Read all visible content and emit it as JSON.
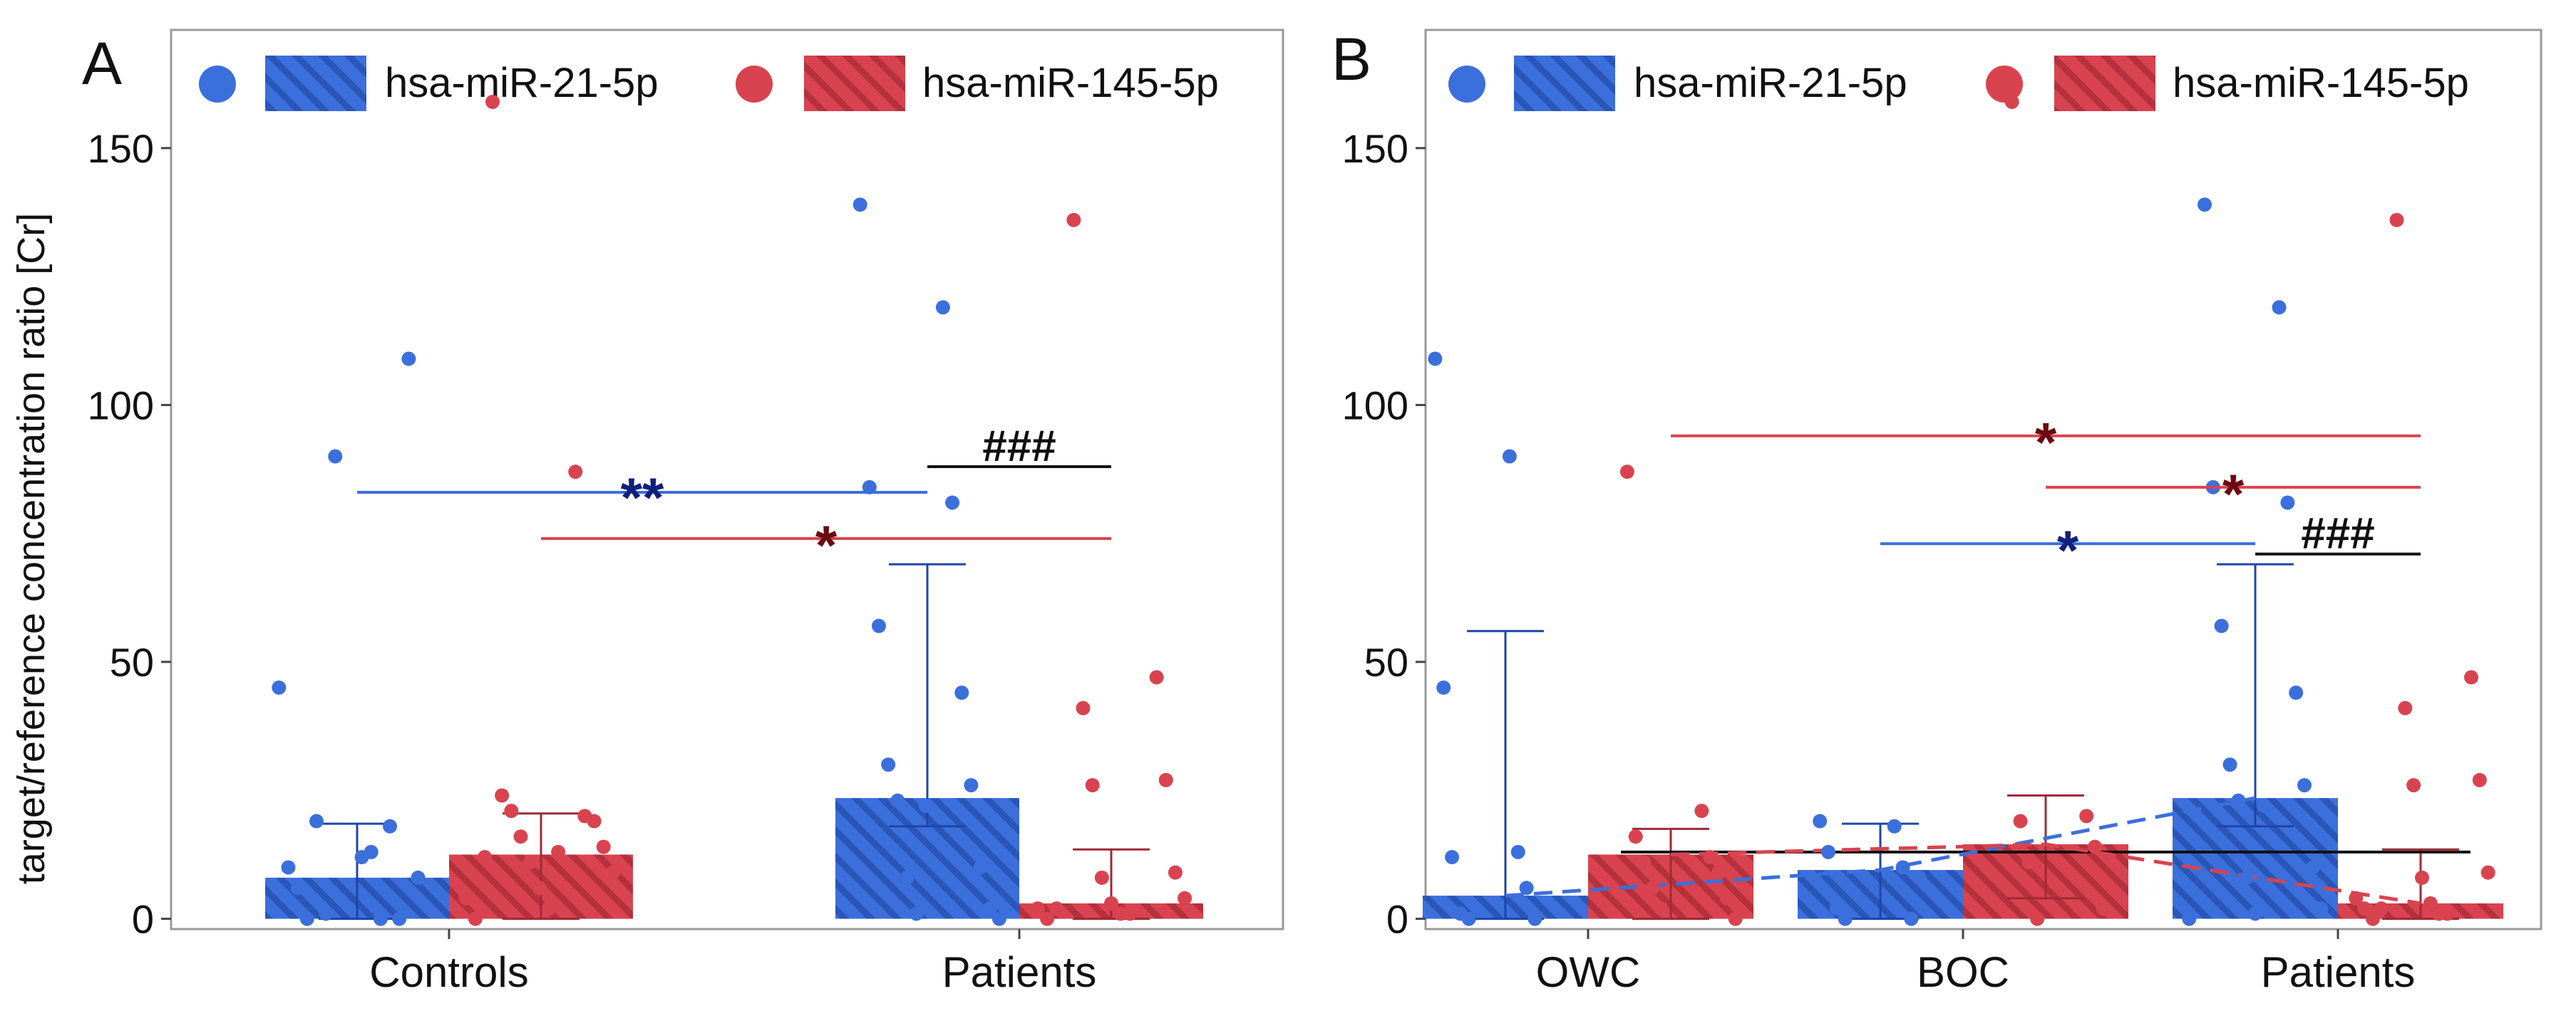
{
  "colors": {
    "blue": "#3b6fdc",
    "blue_dark": "#1f45a8",
    "red": "#d9434f",
    "red_dark": "#a02a35",
    "sig_blue_text": "#10207a",
    "sig_red_text": "#6b0a10",
    "black": "#111111",
    "frame": "#9a9a9a",
    "tick": "#444444"
  },
  "shared": {
    "ylabel": "target/reference concentration ratio [Cr]",
    "y_ticks": [
      0,
      50,
      100,
      150
    ],
    "ylim": [
      -2,
      173
    ]
  },
  "chart_data": [
    {
      "type": "bar",
      "panel": "A",
      "panel_label": "A",
      "categories": [
        "Controls",
        "Patients"
      ],
      "ylabel": "target/reference concentration ratio [Cr]",
      "ylim": [
        -2,
        173
      ],
      "legend": {
        "position": "top",
        "entries": [
          "hsa-miR-21-5p",
          "hsa-miR-145-5p"
        ]
      },
      "series": [
        {
          "name": "hsa-miR-21-5p",
          "color_key": "blue",
          "values": [
            8,
            23.5
          ],
          "error_upper": [
            18.5,
            69
          ],
          "error_lower": [
            0,
            18
          ],
          "points": [
            [
              45,
              12,
              10,
              13,
              6,
              0,
              0,
              18,
              19,
              0,
              1,
              109,
              90,
              8
            ],
            [
              139,
              119,
              84,
              81,
              57,
              44,
              30,
              26,
              23,
              10,
              8,
              2,
              1,
              0,
              22
            ]
          ]
        },
        {
          "name": "hsa-miR-145-5p",
          "color_key": "red",
          "values": [
            12.5,
            3
          ],
          "error_upper": [
            20.5,
            13.5
          ],
          "error_lower": [
            0,
            0
          ],
          "points": [
            [
              159,
              87,
              24,
              20,
              21,
              19,
              16,
              14,
              11,
              9,
              6,
              4,
              2,
              0,
              13,
              12
            ],
            [
              136,
              47,
              41,
              27,
              26,
              9,
              8,
              4,
              3,
              2,
              1,
              0,
              1,
              2
            ]
          ]
        }
      ],
      "significance": [
        {
          "label": "**",
          "y": 83,
          "from": [
            0,
            0
          ],
          "to": [
            1,
            0
          ],
          "color_key": "blue",
          "text_color_key": "sig_blue_text"
        },
        {
          "label": "*",
          "y": 74,
          "from": [
            0,
            1
          ],
          "to": [
            1,
            1
          ],
          "color_key": "red",
          "text_color_key": "sig_red_text"
        },
        {
          "label": "###",
          "y": 88,
          "from": [
            1,
            0
          ],
          "to": [
            1,
            1
          ],
          "color_key": "black",
          "text_color_key": "black"
        }
      ]
    },
    {
      "type": "bar",
      "panel": "B",
      "panel_label": "B",
      "categories": [
        "OWC",
        "BOC",
        "Patients"
      ],
      "ylim": [
        -2,
        173
      ],
      "legend": {
        "position": "top",
        "entries": [
          "hsa-miR-21-5p",
          "hsa-miR-145-5p"
        ]
      },
      "series": [
        {
          "name": "hsa-miR-21-5p",
          "color_key": "blue",
          "values": [
            4.5,
            9.5,
            23.5
          ],
          "error_upper": [
            56,
            18.5,
            69
          ],
          "error_lower": [
            0,
            0,
            18
          ],
          "points": [
            [
              109,
              90,
              45,
              13,
              12,
              6,
              1,
              0,
              0
            ],
            [
              19,
              18,
              13,
              10,
              2,
              0,
              0,
              8
            ],
            [
              139,
              119,
              84,
              81,
              57,
              44,
              30,
              26,
              23,
              10,
              8,
              2,
              1,
              0,
              22
            ]
          ]
        },
        {
          "name": "hsa-miR-145-5p",
          "color_key": "red",
          "values": [
            12.5,
            14.5,
            3
          ],
          "error_upper": [
            17.5,
            24,
            13.5
          ],
          "error_lower": [
            0,
            4,
            0
          ],
          "points": [
            [
              87,
              21,
              16,
              12,
              11,
              9,
              6,
              4,
              2,
              0
            ],
            [
              159,
              20,
              19,
              14,
              11,
              2,
              0
            ],
            [
              136,
              47,
              41,
              27,
              26,
              9,
              8,
              4,
              3,
              2,
              1,
              0,
              1,
              2
            ]
          ]
        }
      ],
      "trend_lines": [
        {
          "series": "hsa-miR-21-5p",
          "style": "dashed",
          "color_key": "blue"
        },
        {
          "series": "hsa-miR-145-5p",
          "style": "dashed",
          "color_key": "red"
        }
      ],
      "reference_line": {
        "y": 13,
        "from_category": 0,
        "to_category": 2,
        "color_key": "black"
      },
      "significance": [
        {
          "label": "*",
          "y": 94,
          "from": [
            0,
            1
          ],
          "to": [
            2,
            1
          ],
          "color_key": "red",
          "text_color_key": "sig_red_text"
        },
        {
          "label": "*",
          "y": 84,
          "from": [
            1,
            1
          ],
          "to": [
            2,
            1
          ],
          "color_key": "red",
          "text_color_key": "sig_red_text"
        },
        {
          "label": "*",
          "y": 73,
          "from": [
            1,
            0
          ],
          "to": [
            2,
            0
          ],
          "color_key": "blue",
          "text_color_key": "sig_blue_text"
        },
        {
          "label": "###",
          "y": 71,
          "from": [
            2,
            0
          ],
          "to": [
            2,
            1
          ],
          "color_key": "black",
          "text_color_key": "black"
        }
      ]
    }
  ]
}
